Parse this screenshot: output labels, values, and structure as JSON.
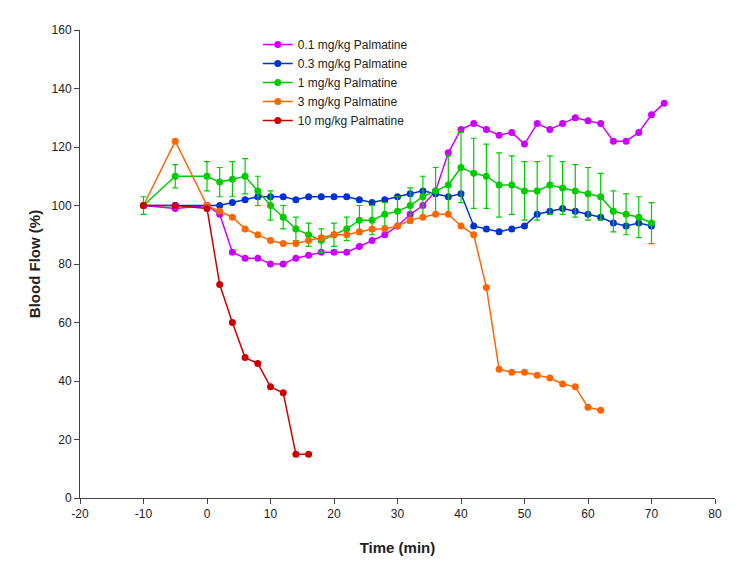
{
  "chart_data": {
    "type": "line",
    "xlabel": "Time (min)",
    "ylabel": "Blood Flow (%)",
    "xlim": [
      -20,
      80
    ],
    "ylim": [
      0,
      160
    ],
    "xticks": [
      -20,
      -10,
      0,
      10,
      20,
      30,
      40,
      50,
      60,
      70,
      80
    ],
    "yticks": [
      0,
      20,
      40,
      60,
      80,
      100,
      120,
      140,
      160
    ],
    "grid": false,
    "legend": "upper left",
    "marker": "circle",
    "line_style": "solid",
    "series": [
      {
        "name": "0.1 mg/kg Palmatine",
        "color": "#cc00ff",
        "x": [
          -10,
          -5,
          0,
          2,
          4,
          6,
          8,
          10,
          12,
          14,
          16,
          18,
          20,
          22,
          24,
          26,
          28,
          30,
          32,
          34,
          36,
          38,
          40,
          42,
          44,
          46,
          48,
          50,
          52,
          54,
          56,
          58,
          60,
          62,
          64,
          66,
          68,
          70,
          72
        ],
        "values": [
          100,
          99,
          100,
          97,
          84,
          82,
          82,
          80,
          80,
          82,
          83,
          84,
          84,
          84,
          86,
          88,
          90,
          93,
          97,
          100,
          105,
          118,
          126,
          128,
          126,
          124,
          125,
          121,
          128,
          126,
          128,
          130,
          129,
          128,
          122,
          122,
          125,
          131,
          135
        ]
      },
      {
        "name": "0.3 mg/kg Palmatine",
        "color": "#0033cc",
        "x": [
          -10,
          -5,
          0,
          2,
          4,
          6,
          8,
          10,
          12,
          14,
          16,
          18,
          20,
          22,
          24,
          26,
          28,
          30,
          32,
          34,
          36,
          38,
          40,
          42,
          44,
          46,
          48,
          50,
          52,
          54,
          56,
          58,
          60,
          62,
          64,
          66,
          68,
          70
        ],
        "values": [
          100,
          100,
          100,
          100,
          101,
          102,
          103,
          103,
          103,
          102,
          103,
          103,
          103,
          103,
          102,
          101,
          102,
          103,
          104,
          105,
          104,
          103,
          104,
          93,
          92,
          91,
          92,
          93,
          97,
          98,
          99,
          98,
          97,
          96,
          94,
          93,
          94,
          93
        ]
      },
      {
        "name": "1 mg/kg Palmatine",
        "color": "#00cc00",
        "x": [
          -10,
          -5,
          0,
          2,
          4,
          6,
          8,
          10,
          12,
          14,
          16,
          18,
          20,
          22,
          24,
          26,
          28,
          30,
          32,
          34,
          36,
          38,
          40,
          42,
          44,
          46,
          48,
          50,
          52,
          54,
          56,
          58,
          60,
          62,
          64,
          66,
          68,
          70
        ],
        "values": [
          100,
          110,
          110,
          108,
          109,
          110,
          105,
          100,
          96,
          92,
          90,
          88,
          90,
          92,
          95,
          95,
          97,
          98,
          100,
          103,
          105,
          107,
          113,
          111,
          110,
          107,
          107,
          105,
          105,
          107,
          106,
          105,
          104,
          103,
          98,
          97,
          96,
          94
        ],
        "yerr": [
          3,
          4,
          5,
          5,
          6,
          6,
          5,
          5,
          4,
          4,
          4,
          4,
          4,
          4,
          5,
          5,
          4,
          5,
          6,
          7,
          8,
          10,
          12,
          12,
          11,
          11,
          10,
          10,
          10,
          10,
          9,
          9,
          9,
          8,
          7,
          7,
          7,
          7
        ]
      },
      {
        "name": "3 mg/kg Palmatine",
        "color": "#ff6600",
        "x": [
          -10,
          -5,
          0,
          2,
          4,
          6,
          8,
          10,
          12,
          14,
          16,
          18,
          20,
          22,
          24,
          26,
          28,
          30,
          32,
          34,
          36,
          38,
          40,
          42,
          44,
          46,
          48,
          50,
          52,
          54,
          56,
          58,
          60,
          62
        ],
        "values": [
          100,
          122,
          100,
          98,
          96,
          92,
          90,
          88,
          87,
          87,
          88,
          89,
          90,
          90,
          91,
          92,
          92,
          93,
          95,
          96,
          97,
          97,
          93,
          90,
          72,
          44,
          43,
          43,
          42,
          41,
          39,
          38,
          31,
          30
        ]
      },
      {
        "name": "10 mg/kg Palmatine",
        "color": "#cc0000",
        "x": [
          -10,
          -5,
          0,
          2,
          4,
          6,
          8,
          10,
          12,
          14,
          16
        ],
        "values": [
          100,
          100,
          99,
          73,
          60,
          48,
          46,
          38,
          36,
          15,
          15
        ]
      }
    ]
  }
}
